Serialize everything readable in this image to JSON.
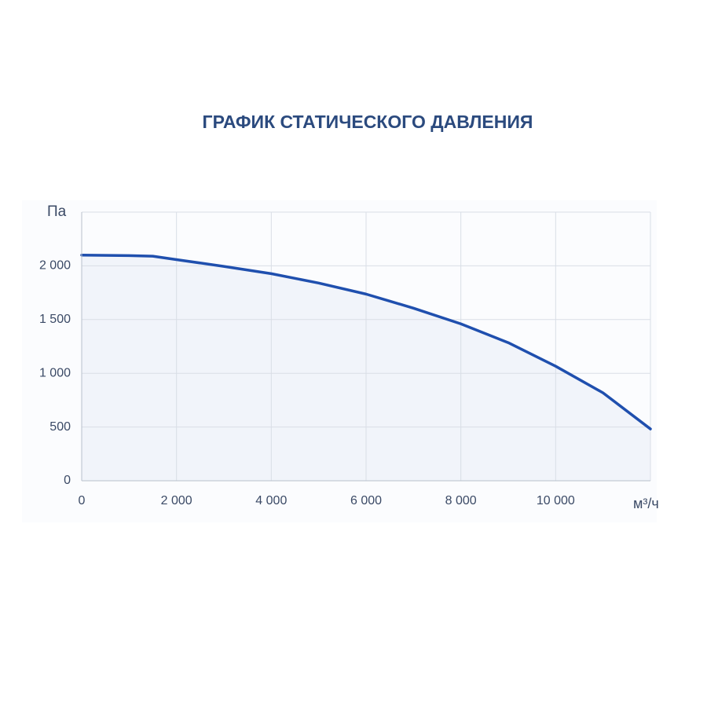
{
  "chart_data": {
    "type": "line",
    "title": "ГРАФИК СТАТИЧЕСКОГО ДАВЛЕНИЯ",
    "y_label": "Па",
    "x_label": "м³/ч",
    "x": [
      0,
      1000,
      1500,
      2000,
      3000,
      4000,
      5000,
      6000,
      7000,
      8000,
      9000,
      10000,
      11000,
      12000
    ],
    "values": [
      2100,
      2095,
      2090,
      2058,
      1995,
      1927,
      1840,
      1737,
      1606,
      1460,
      1285,
      1066,
      818,
      482
    ],
    "color": "#1f4fae",
    "fill": "#f1f4fa",
    "xlim": [
      0,
      12000
    ],
    "ylim": [
      0,
      2500
    ],
    "xticks": [
      0,
      {
        "value": 2000,
        "label": "2 000"
      },
      {
        "value": 4000,
        "label": "4 000"
      },
      {
        "value": 6000,
        "label": "6 000"
      },
      {
        "value": 8000,
        "label": "8 000"
      },
      {
        "value": 10000,
        "label": "10 000"
      }
    ],
    "yticks": [
      0,
      500,
      {
        "value": 1000,
        "label": "1 000"
      },
      {
        "value": 1500,
        "label": "1 500"
      },
      {
        "value": 2000,
        "label": "2 000"
      }
    ],
    "grid": true
  }
}
